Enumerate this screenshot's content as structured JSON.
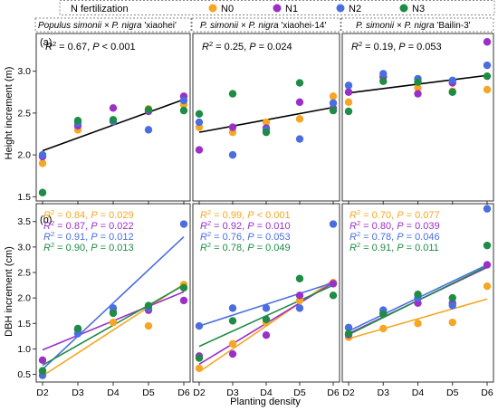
{
  "legend": {
    "title": "N fertilization",
    "entries": [
      {
        "name": "N0",
        "color": "#f5a623"
      },
      {
        "name": "N1",
        "color": "#9b30c8"
      },
      {
        "name": "N2",
        "color": "#4a6ee0"
      },
      {
        "name": "N3",
        "color": "#1e8c45"
      }
    ]
  },
  "panel_titles": [
    {
      "italic": "Populus simonii × P. nigra",
      "plain": " 'xiaohei'"
    },
    {
      "italic": "P. simonii × P. nigra",
      "plain": " 'xiaohei-14'"
    },
    {
      "italic": "P. simonii × P. nigra",
      "plain": " 'Bailin-3'"
    }
  ],
  "row_labels": [
    "(a)",
    "(b)"
  ],
  "xlabel": "Planting density",
  "chart_data": [
    {
      "type": "scatter",
      "row": "a",
      "ylabel": "Height increment (m)",
      "categories": [
        "D2",
        "D3",
        "D4",
        "D5",
        "D6"
      ],
      "ylim": [
        1.45,
        3.45
      ],
      "yticks": [
        1.5,
        2.0,
        2.5,
        3.0
      ],
      "grid": false,
      "panels": [
        {
          "annotation": {
            "r2": "0.67",
            "p": "P < 0.001"
          },
          "fit": {
            "y": [
              2.05,
              2.6625
            ]
          },
          "series": [
            {
              "name": "N0",
              "values": [
                1.9,
                2.3,
                2.4,
                2.55,
                2.6
              ]
            },
            {
              "name": "N1",
              "values": [
                1.98,
                2.35,
                2.56,
                2.52,
                2.7
              ]
            },
            {
              "name": "N2",
              "values": [
                2.0,
                2.38,
                2.4,
                2.3,
                2.65
              ]
            },
            {
              "name": "N3",
              "values": [
                1.55,
                2.41,
                2.42,
                2.54,
                2.53
              ]
            }
          ]
        },
        {
          "annotation": {
            "r2": "0.25",
            "p": "P = 0.024"
          },
          "fit": {
            "y": [
              2.27,
              2.5675
            ]
          },
          "series": [
            {
              "name": "N0",
              "values": [
                2.33,
                2.27,
                2.39,
                2.43,
                2.7
              ]
            },
            {
              "name": "N1",
              "values": [
                2.06,
                2.33,
                2.32,
                2.63,
                2.56
              ]
            },
            {
              "name": "N2",
              "values": [
                2.39,
                2.0,
                2.3,
                2.19,
                2.62
              ]
            },
            {
              "name": "N3",
              "values": [
                2.49,
                2.73,
                2.27,
                2.86,
                2.53
              ]
            }
          ]
        },
        {
          "annotation": {
            "r2": "0.19",
            "p": "P = 0.053"
          },
          "fit": {
            "y": [
              2.74,
              2.95
            ]
          },
          "series": [
            {
              "name": "N0",
              "values": [
                2.63,
                2.93,
                2.8,
                2.76,
                2.78
              ]
            },
            {
              "name": "N1",
              "values": [
                2.75,
                2.93,
                2.73,
                2.86,
                3.35
              ]
            },
            {
              "name": "N2",
              "values": [
                2.83,
                2.97,
                2.91,
                2.89,
                3.07
              ]
            },
            {
              "name": "N3",
              "values": [
                2.52,
                2.88,
                2.87,
                2.75,
                2.94
              ]
            }
          ]
        }
      ]
    },
    {
      "type": "scatter",
      "row": "b",
      "ylabel": "DBH increment (cm)",
      "categories": [
        "D2",
        "D3",
        "D4",
        "D5",
        "D6"
      ],
      "ylim": [
        0.35,
        3.85
      ],
      "yticks": [
        0.5,
        1.0,
        1.5,
        2.0,
        2.5,
        3.0,
        3.5
      ],
      "grid": false,
      "panels": [
        {
          "annotations": [
            {
              "series": "N0",
              "r2": "0.84",
              "p": "P = 0.029"
            },
            {
              "series": "N1",
              "r2": "0.87",
              "p": "P = 0.022"
            },
            {
              "series": "N2",
              "r2": "0.91",
              "p": "P = 0.012"
            },
            {
              "series": "N3",
              "r2": "0.90",
              "p": "P = 0.013"
            }
          ],
          "fits": [
            {
              "series": "N0",
              "y": [
                0.47,
                2.27
              ]
            },
            {
              "series": "N1",
              "y": [
                0.98,
                2.12
              ]
            },
            {
              "series": "N2",
              "y": [
                0.6,
                3.2
              ]
            },
            {
              "series": "N3",
              "y": [
                0.68,
                2.25
              ]
            }
          ],
          "series": [
            {
              "name": "N0",
              "values": [
                0.55,
                1.38,
                1.52,
                1.45,
                2.26
              ]
            },
            {
              "name": "N1",
              "values": [
                0.78,
                1.38,
                1.72,
                1.76,
                1.95
              ]
            },
            {
              "name": "N2",
              "values": [
                0.48,
                1.3,
                1.8,
                1.8,
                3.45
              ]
            },
            {
              "name": "N3",
              "values": [
                0.57,
                1.4,
                1.7,
                1.85,
                2.2
              ]
            }
          ]
        },
        {
          "annotations": [
            {
              "series": "N0",
              "r2": "0.99",
              "p": "P < 0.001"
            },
            {
              "series": "N1",
              "r2": "0.92",
              "p": "P = 0.010"
            },
            {
              "series": "N2",
              "r2": "0.76",
              "p": "P = 0.053"
            },
            {
              "series": "N3",
              "r2": "0.78",
              "p": "P = 0.049"
            }
          ],
          "fits": [
            {
              "series": "N0",
              "y": [
                0.55,
                2.35
              ]
            },
            {
              "series": "N1",
              "y": [
                0.7,
                2.3
              ]
            },
            {
              "series": "N2",
              "y": [
                1.45,
                2.3
              ]
            },
            {
              "series": "N3",
              "y": [
                1.05,
                2.25
              ]
            }
          ],
          "series": [
            {
              "name": "N0",
              "values": [
                0.62,
                1.1,
                1.52,
                1.95,
                2.3
              ]
            },
            {
              "name": "N1",
              "values": [
                0.86,
                0.9,
                1.27,
                2.05,
                2.28
              ]
            },
            {
              "name": "N2",
              "values": [
                1.45,
                1.8,
                1.8,
                1.8,
                3.45
              ]
            },
            {
              "name": "N3",
              "values": [
                0.82,
                1.55,
                1.58,
                2.38,
                2.05
              ]
            }
          ]
        },
        {
          "annotations": [
            {
              "series": "N0",
              "r2": "0.70",
              "p": "P = 0.077"
            },
            {
              "series": "N1",
              "r2": "0.80",
              "p": "P = 0.039"
            },
            {
              "series": "N2",
              "r2": "0.78",
              "p": "P = 0.046"
            },
            {
              "series": "N3",
              "r2": "0.91",
              "p": "P = 0.011"
            }
          ],
          "fits": [
            {
              "series": "N0",
              "y": [
                1.2,
                1.98
              ]
            },
            {
              "series": "N1",
              "y": [
                1.3,
                2.6
              ]
            },
            {
              "series": "N2",
              "y": [
                1.35,
                2.65
              ]
            },
            {
              "series": "N3",
              "y": [
                1.28,
                2.62
              ]
            }
          ],
          "series": [
            {
              "name": "N0",
              "values": [
                1.23,
                1.4,
                1.5,
                1.52,
                2.23
              ]
            },
            {
              "name": "N1",
              "values": [
                1.28,
                1.7,
                1.9,
                1.9,
                2.65
              ]
            },
            {
              "name": "N2",
              "values": [
                1.42,
                1.76,
                2.0,
                1.85,
                3.75
              ]
            },
            {
              "name": "N3",
              "values": [
                1.3,
                1.68,
                2.07,
                2.0,
                3.03
              ]
            }
          ]
        }
      ]
    }
  ]
}
